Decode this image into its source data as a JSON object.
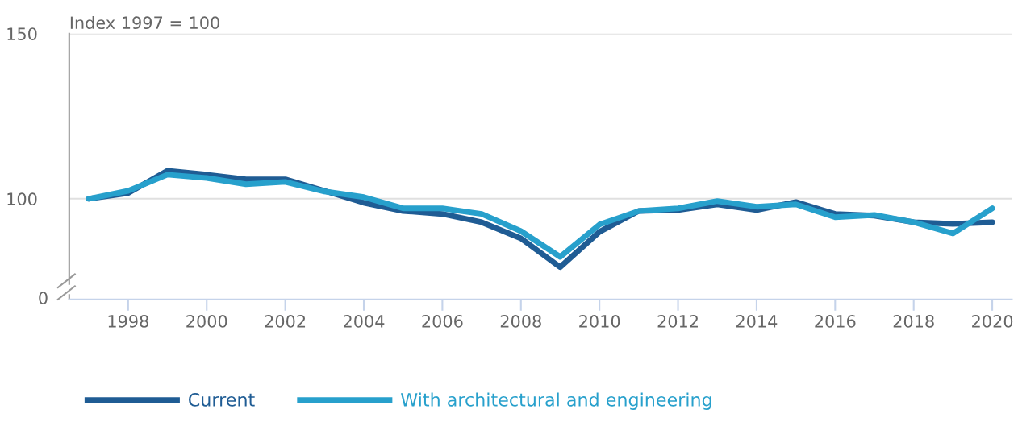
{
  "chart_data": {
    "type": "line",
    "ylabel": "Index 1997 = 100",
    "x": [
      1997,
      1998,
      1999,
      2000,
      2001,
      2002,
      2003,
      2004,
      2005,
      2006,
      2007,
      2008,
      2009,
      2010,
      2011,
      2012,
      2013,
      2014,
      2015,
      2016,
      2017,
      2018,
      2019,
      2020
    ],
    "series": [
      {
        "name": "Current",
        "color": "#1f5c94",
        "values": [
          100,
          101.7,
          108.5,
          107.3,
          105.9,
          105.9,
          102.4,
          98.8,
          96.3,
          95.4,
          92.9,
          88.0,
          79.3,
          90.0,
          96.3,
          96.6,
          98.3,
          96.6,
          99.0,
          95.4,
          94.9,
          92.9,
          92.4,
          92.9
        ]
      },
      {
        "name": "With architectural and engineering",
        "color": "#27a0cc",
        "values": [
          100,
          102.4,
          107.3,
          106.3,
          104.4,
          105.1,
          102.2,
          100.5,
          97.1,
          97.1,
          95.4,
          90.2,
          82.4,
          92.2,
          96.3,
          97.1,
          99.3,
          97.6,
          98.3,
          94.4,
          95.1,
          92.9,
          89.5,
          97.1
        ]
      }
    ],
    "xlim": [
      1996.5,
      2020.5
    ],
    "xticks": [
      1998,
      2000,
      2002,
      2004,
      2006,
      2008,
      2010,
      2012,
      2014,
      2016,
      2018,
      2020
    ],
    "ylim": [
      69.5,
      150
    ],
    "yticks": [
      100,
      150
    ],
    "annotations": [
      "0"
    ],
    "grid": "y",
    "legend": "bottom",
    "line_style": "solid",
    "marker": "none"
  }
}
